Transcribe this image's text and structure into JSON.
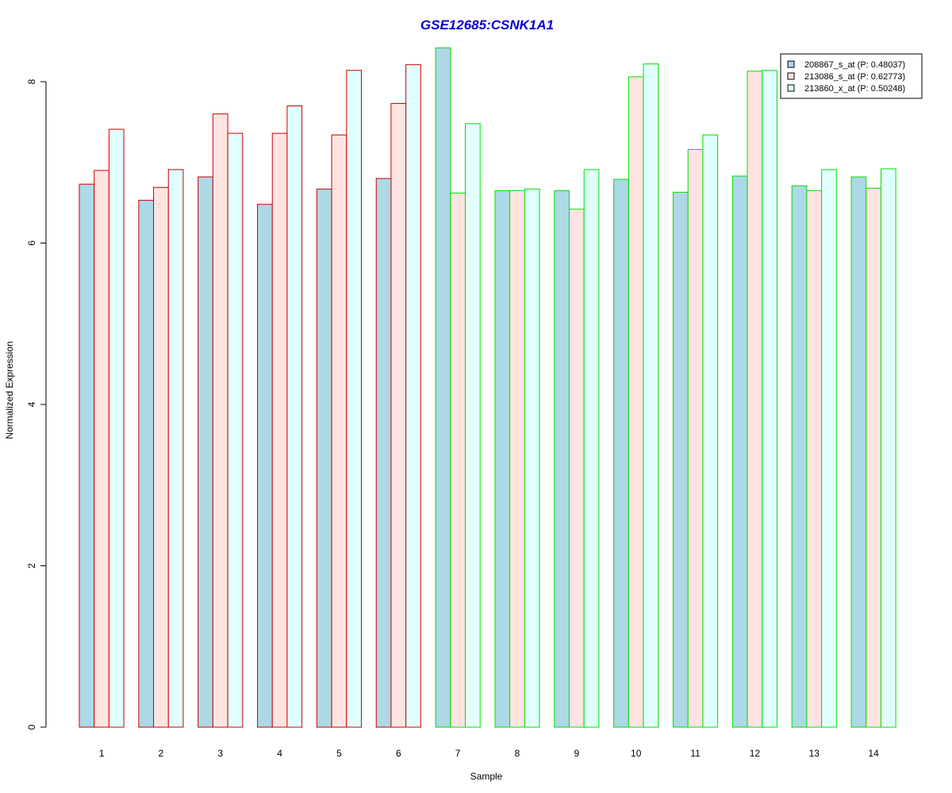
{
  "chart_data": {
    "type": "bar",
    "title": "GSE12685:CSNK1A1",
    "xlabel": "Sample",
    "ylabel": "Normalized Expression",
    "categories": [
      "1",
      "2",
      "3",
      "4",
      "5",
      "6",
      "7",
      "8",
      "9",
      "10",
      "11",
      "12",
      "13",
      "14"
    ],
    "ylim": [
      0,
      8.4
    ],
    "yticks": [
      0,
      2,
      4,
      6,
      8
    ],
    "grid": false,
    "legend_position": "top-right",
    "series": [
      {
        "name": "208867_s_at (P: 0.48037)",
        "fill": "#add8e6",
        "values": [
          6.73,
          6.53,
          6.82,
          6.48,
          6.67,
          6.8,
          8.42,
          6.65,
          6.65,
          6.79,
          6.63,
          6.83,
          6.71,
          6.82
        ]
      },
      {
        "name": "213086_s_at (P: 0.62773)",
        "fill": "#ffe4e1",
        "values": [
          6.9,
          6.69,
          7.6,
          7.36,
          7.34,
          7.73,
          6.62,
          6.65,
          6.42,
          8.06,
          7.16,
          8.13,
          6.65,
          6.68
        ]
      },
      {
        "name": "213860_x_at (P: 0.50248)",
        "fill": "#e0ffff",
        "values": [
          7.41,
          6.91,
          7.36,
          7.7,
          8.14,
          8.21,
          7.48,
          6.67,
          6.91,
          8.22,
          7.34,
          8.14,
          6.91,
          6.92
        ]
      }
    ],
    "group_border_colors": [
      "#cc0000",
      "#cc0000",
      "#cc0000",
      "#cc0000",
      "#cc0000",
      "#cc0000",
      "#00e000",
      "#00e000",
      "#00e000",
      "#00e000",
      "#00e000",
      "#00e000",
      "#00e000",
      "#00e000"
    ]
  },
  "colors": {
    "title": "#0000cc",
    "axis": "#000000"
  }
}
